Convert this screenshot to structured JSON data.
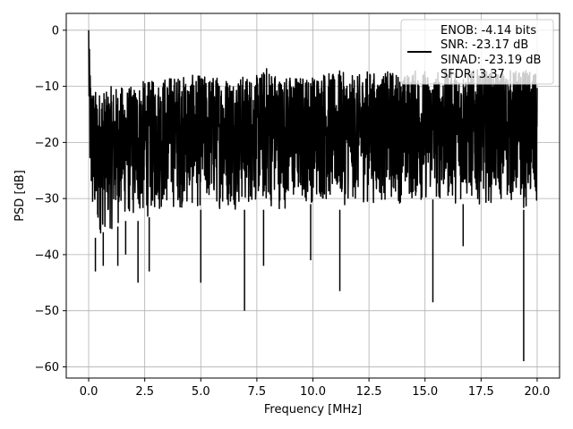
{
  "chart_data": {
    "type": "line",
    "title": "",
    "xlabel": "Frequency [MHz]",
    "ylabel": "PSD [dB]",
    "xlim": [
      -1.0,
      21.0
    ],
    "ylim": [
      -62.0,
      3.0
    ],
    "xticks": [
      0.0,
      2.5,
      5.0,
      7.5,
      10.0,
      12.5,
      15.0,
      17.5,
      20.0
    ],
    "xtick_labels": [
      "0.0",
      "2.5",
      "5.0",
      "7.5",
      "10.0",
      "12.5",
      "15.0",
      "17.5",
      "20.0"
    ],
    "yticks": [
      0,
      -10,
      -20,
      -30,
      -40,
      -50,
      -60
    ],
    "ytick_labels": [
      "0",
      "−10",
      "−20",
      "−30",
      "−40",
      "−50",
      "−60"
    ],
    "grid": true,
    "legend_position": "top-right",
    "colors": {
      "line": "#000000",
      "grid": "#b0b0b0"
    },
    "legend": [
      "ENOB: -4.14 bits",
      "SNR: -23.17 dB",
      "SINAD: -23.19 dB",
      "SFDR: 3.37"
    ],
    "series": [
      {
        "color": "#000000",
        "x": [
          0.0,
          0.05,
          0.1,
          0.2,
          0.4,
          0.6,
          0.8,
          1.0,
          1.3,
          1.6,
          2.0,
          2.2,
          2.5,
          2.8,
          3.0,
          3.5,
          4.0,
          4.5,
          5.0,
          5.5,
          6.0,
          6.5,
          7.0,
          7.5,
          7.8,
          8.0,
          8.5,
          9.0,
          9.5,
          10.0,
          10.5,
          11.0,
          11.2,
          11.5,
          12.0,
          12.5,
          13.0,
          13.5,
          14.0,
          14.5,
          15.0,
          15.3,
          15.6,
          16.0,
          16.5,
          16.8,
          17.0,
          17.5,
          18.0,
          18.5,
          19.0,
          19.4,
          19.7,
          20.0
        ],
        "upper": [
          0,
          -5,
          -8,
          -10,
          -11,
          -10,
          -11,
          -10,
          -10,
          -10,
          -10,
          -9,
          -9,
          -9,
          -9,
          -8,
          -8,
          -8,
          -8,
          -8,
          -8,
          -8,
          -8,
          -8,
          -7,
          -6,
          -8,
          -8,
          -8,
          -8,
          -7,
          -8,
          -7,
          -8,
          -8,
          -7,
          -8,
          -7,
          -8,
          -7,
          -7,
          -8,
          -7,
          -7,
          -7,
          -7,
          -7,
          -7,
          -7,
          -7,
          -7,
          -7,
          -7,
          -8
        ],
        "lower": [
          -14,
          -28,
          -34,
          -36,
          -38,
          -36,
          -36,
          -36,
          -35,
          -34,
          -34,
          -34,
          -34,
          -33,
          -33,
          -32,
          -32,
          -32,
          -32,
          -32,
          -32,
          -32,
          -32,
          -31,
          -32,
          -32,
          -32,
          -32,
          -31,
          -31,
          -31,
          -31,
          -32,
          -31,
          -31,
          -31,
          -31,
          -31,
          -31,
          -31,
          -31,
          -30,
          -31,
          -31,
          -31,
          -31,
          -31,
          -31,
          -31,
          -31,
          -31,
          -32,
          -32,
          -34
        ],
        "spikes": [
          {
            "x": 0.3,
            "y": -43
          },
          {
            "x": 0.65,
            "y": -42
          },
          {
            "x": 1.3,
            "y": -42
          },
          {
            "x": 1.65,
            "y": -40
          },
          {
            "x": 2.2,
            "y": -45
          },
          {
            "x": 2.7,
            "y": -43
          },
          {
            "x": 5.0,
            "y": -45
          },
          {
            "x": 6.95,
            "y": -50
          },
          {
            "x": 7.8,
            "y": -42
          },
          {
            "x": 9.9,
            "y": -41
          },
          {
            "x": 11.2,
            "y": -46.5
          },
          {
            "x": 15.35,
            "y": -48.5
          },
          {
            "x": 16.7,
            "y": -38.5
          },
          {
            "x": 19.4,
            "y": -59
          }
        ]
      }
    ]
  }
}
